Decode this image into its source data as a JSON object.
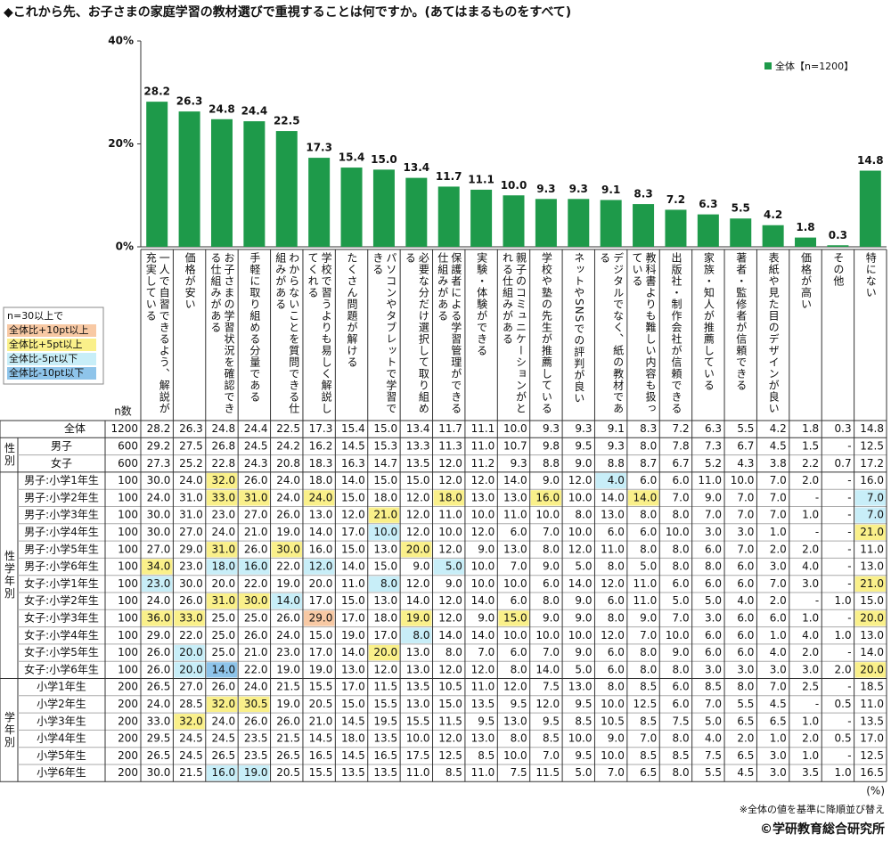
{
  "title": "◆これから先、お子さまの家庭学習の教材選びで重視することは何ですか。(あてはまるものをすべて)",
  "chart_data": {
    "type": "bar",
    "legend": "top-right",
    "grid": false,
    "categories": [
      "一人で自習できるよう、解説が充実している",
      "価格が安い",
      "お子さまの学習状況を確認できる仕組みがある",
      "手軽に取り組める分量である",
      "わからないことを質問できる仕組みがある",
      "学校で習うよりも易しく解説してくれる",
      "たくさん問題が解ける",
      "パソコンやタブレットで学習できる",
      "必要な分だけ選択して取り組める",
      "保護者による学習管理ができる仕組みがある",
      "実験・体験ができる",
      "親子のコミュニケーションがとれる仕組みがある",
      "学校や塾の先生が推薦している",
      "ネットやSNSでの評判が良い",
      "デジタルでなく、紙の教材である",
      "教科書よりも難しい内容も扱っている",
      "出版社・制作会社が信頼できる",
      "家族・知人が推薦している",
      "著者・監修者が信頼できる",
      "表紙や見た目のデザインが良い",
      "価格が高い",
      "その他",
      "特にない"
    ],
    "series": [
      {
        "name": "全体【n=1200】",
        "color": "#1e9a4a",
        "values": [
          28.2,
          26.3,
          24.8,
          24.4,
          22.5,
          17.3,
          15.4,
          15.0,
          13.4,
          11.7,
          11.1,
          10.0,
          9.3,
          9.3,
          9.1,
          8.3,
          7.2,
          6.3,
          5.5,
          4.2,
          1.8,
          0.3,
          14.8
        ],
        "value_labels": [
          "28.2",
          "26.3",
          "24.8",
          "24.4",
          "22.5",
          "17.3",
          "15.4",
          "15.0",
          "13.4",
          "11.7",
          "11.1",
          "10.0",
          "9.3",
          "9.3",
          "9.1",
          "8.3",
          "7.2",
          "6.3",
          "5.5",
          "4.2",
          "1.8",
          "0.3",
          "14.8"
        ]
      }
    ],
    "ylim": [
      0,
      40
    ],
    "yticks": [
      {
        "value": 0,
        "label": "0%"
      },
      {
        "value": 20,
        "label": "20%"
      },
      {
        "value": 40,
        "label": "40%"
      }
    ]
  },
  "table": {
    "n_header": "n数",
    "legend_title": "n=30以上で",
    "min_n": 30,
    "highlight": [
      {
        "label": "全体比+10pt以上",
        "color": "#f8c9a4",
        "min": 10
      },
      {
        "label": "全体比+5pt以上",
        "color": "#faf08a",
        "min": 5
      },
      {
        "label": "全体比-5pt以下",
        "color": "#c8eef8",
        "max": -5
      },
      {
        "label": "全体比-10pt以下",
        "color": "#8ec4ea",
        "max": -10
      }
    ],
    "sections": [
      {
        "rows": [
          {
            "label": "全体",
            "n": "1200",
            "values": [
              "28.2",
              "26.3",
              "24.8",
              "24.4",
              "22.5",
              "17.3",
              "15.4",
              "15.0",
              "13.4",
              "11.7",
              "11.1",
              "10.0",
              "9.3",
              "9.3",
              "9.1",
              "8.3",
              "7.2",
              "6.3",
              "5.5",
              "4.2",
              "1.8",
              "0.3",
              "14.8"
            ]
          }
        ]
      },
      {
        "group": "性別",
        "rows": [
          {
            "label": "男子",
            "n": "600",
            "values": [
              "29.2",
              "27.5",
              "26.8",
              "24.5",
              "24.2",
              "16.2",
              "14.5",
              "15.3",
              "13.3",
              "11.3",
              "11.0",
              "10.7",
              "9.8",
              "9.5",
              "9.3",
              "8.0",
              "7.8",
              "7.3",
              "6.7",
              "4.5",
              "1.5",
              "-",
              "12.5"
            ]
          },
          {
            "label": "女子",
            "n": "600",
            "values": [
              "27.3",
              "25.2",
              "22.8",
              "24.3",
              "20.8",
              "18.3",
              "16.3",
              "14.7",
              "13.5",
              "12.0",
              "11.2",
              "9.3",
              "8.8",
              "9.0",
              "8.8",
              "8.7",
              "6.7",
              "5.2",
              "4.3",
              "3.8",
              "2.2",
              "0.7",
              "17.2"
            ]
          }
        ]
      },
      {
        "group": "性学年別",
        "rows": [
          {
            "label": "男子:小学1年生",
            "n": "100",
            "values": [
              "30.0",
              "24.0",
              "32.0",
              "26.0",
              "24.0",
              "18.0",
              "14.0",
              "15.0",
              "15.0",
              "12.0",
              "12.0",
              "14.0",
              "9.0",
              "12.0",
              "4.0",
              "6.0",
              "6.0",
              "11.0",
              "10.0",
              "7.0",
              "2.0",
              "-",
              "16.0"
            ]
          },
          {
            "label": "男子:小学2年生",
            "n": "100",
            "values": [
              "24.0",
              "31.0",
              "33.0",
              "31.0",
              "24.0",
              "24.0",
              "15.0",
              "18.0",
              "12.0",
              "18.0",
              "13.0",
              "13.0",
              "16.0",
              "10.0",
              "14.0",
              "14.0",
              "7.0",
              "9.0",
              "7.0",
              "7.0",
              "-",
              "-",
              "7.0"
            ]
          },
          {
            "label": "男子:小学3年生",
            "n": "100",
            "values": [
              "30.0",
              "31.0",
              "23.0",
              "27.0",
              "26.0",
              "13.0",
              "12.0",
              "21.0",
              "12.0",
              "11.0",
              "10.0",
              "11.0",
              "10.0",
              "8.0",
              "13.0",
              "8.0",
              "8.0",
              "7.0",
              "7.0",
              "7.0",
              "1.0",
              "-",
              "7.0"
            ]
          },
          {
            "label": "男子:小学4年生",
            "n": "100",
            "values": [
              "30.0",
              "27.0",
              "24.0",
              "21.0",
              "19.0",
              "14.0",
              "17.0",
              "10.0",
              "12.0",
              "10.0",
              "12.0",
              "6.0",
              "7.0",
              "10.0",
              "6.0",
              "6.0",
              "10.0",
              "3.0",
              "3.0",
              "1.0",
              "-",
              "-",
              "21.0"
            ]
          },
          {
            "label": "男子:小学5年生",
            "n": "100",
            "values": [
              "27.0",
              "29.0",
              "31.0",
              "26.0",
              "30.0",
              "16.0",
              "15.0",
              "13.0",
              "20.0",
              "12.0",
              "9.0",
              "13.0",
              "8.0",
              "12.0",
              "11.0",
              "8.0",
              "8.0",
              "6.0",
              "7.0",
              "2.0",
              "2.0",
              "-",
              "11.0"
            ]
          },
          {
            "label": "男子:小学6年生",
            "n": "100",
            "values": [
              "34.0",
              "23.0",
              "18.0",
              "16.0",
              "22.0",
              "12.0",
              "14.0",
              "15.0",
              "9.0",
              "5.0",
              "10.0",
              "7.0",
              "9.0",
              "5.0",
              "8.0",
              "5.0",
              "8.0",
              "8.0",
              "6.0",
              "3.0",
              "4.0",
              "-",
              "13.0"
            ]
          },
          {
            "label": "女子:小学1年生",
            "n": "100",
            "values": [
              "23.0",
              "30.0",
              "20.0",
              "22.0",
              "19.0",
              "20.0",
              "11.0",
              "8.0",
              "12.0",
              "9.0",
              "10.0",
              "10.0",
              "6.0",
              "14.0",
              "12.0",
              "11.0",
              "6.0",
              "6.0",
              "6.0",
              "7.0",
              "3.0",
              "-",
              "21.0"
            ]
          },
          {
            "label": "女子:小学2年生",
            "n": "100",
            "values": [
              "24.0",
              "26.0",
              "31.0",
              "30.0",
              "14.0",
              "17.0",
              "15.0",
              "13.0",
              "14.0",
              "12.0",
              "14.0",
              "6.0",
              "8.0",
              "9.0",
              "6.0",
              "11.0",
              "5.0",
              "5.0",
              "4.0",
              "2.0",
              "-",
              "1.0",
              "15.0"
            ]
          },
          {
            "label": "女子:小学3年生",
            "n": "100",
            "values": [
              "36.0",
              "33.0",
              "25.0",
              "25.0",
              "26.0",
              "29.0",
              "17.0",
              "18.0",
              "19.0",
              "12.0",
              "9.0",
              "15.0",
              "9.0",
              "9.0",
              "8.0",
              "9.0",
              "7.0",
              "3.0",
              "6.0",
              "6.0",
              "1.0",
              "-",
              "20.0"
            ]
          },
          {
            "label": "女子:小学4年生",
            "n": "100",
            "values": [
              "29.0",
              "22.0",
              "25.0",
              "26.0",
              "24.0",
              "15.0",
              "19.0",
              "17.0",
              "8.0",
              "14.0",
              "14.0",
              "10.0",
              "10.0",
              "10.0",
              "12.0",
              "7.0",
              "10.0",
              "6.0",
              "6.0",
              "1.0",
              "4.0",
              "1.0",
              "13.0"
            ]
          },
          {
            "label": "女子:小学5年生",
            "n": "100",
            "values": [
              "26.0",
              "20.0",
              "25.0",
              "21.0",
              "23.0",
              "17.0",
              "14.0",
              "20.0",
              "13.0",
              "8.0",
              "7.0",
              "6.0",
              "7.0",
              "9.0",
              "6.0",
              "8.0",
              "9.0",
              "6.0",
              "6.0",
              "4.0",
              "2.0",
              "-",
              "14.0"
            ]
          },
          {
            "label": "女子:小学6年生",
            "n": "100",
            "values": [
              "26.0",
              "20.0",
              "14.0",
              "22.0",
              "19.0",
              "19.0",
              "13.0",
              "12.0",
              "13.0",
              "12.0",
              "12.0",
              "8.0",
              "14.0",
              "5.0",
              "6.0",
              "8.0",
              "8.0",
              "3.0",
              "3.0",
              "3.0",
              "3.0",
              "2.0",
              "20.0"
            ]
          }
        ]
      },
      {
        "group": "学年別",
        "rows": [
          {
            "label": "小学1年生",
            "n": "200",
            "values": [
              "26.5",
              "27.0",
              "26.0",
              "24.0",
              "21.5",
              "15.5",
              "17.0",
              "11.5",
              "13.5",
              "10.5",
              "11.0",
              "12.0",
              "7.5",
              "13.0",
              "8.0",
              "8.5",
              "6.0",
              "8.5",
              "8.0",
              "7.0",
              "2.5",
              "-",
              "18.5"
            ]
          },
          {
            "label": "小学2年生",
            "n": "200",
            "values": [
              "24.0",
              "28.5",
              "32.0",
              "30.5",
              "19.0",
              "20.5",
              "15.0",
              "15.5",
              "13.0",
              "15.0",
              "13.5",
              "9.5",
              "12.0",
              "9.5",
              "10.0",
              "12.5",
              "6.0",
              "7.0",
              "5.5",
              "4.5",
              "-",
              "0.5",
              "11.0"
            ]
          },
          {
            "label": "小学3年生",
            "n": "200",
            "values": [
              "33.0",
              "32.0",
              "24.0",
              "26.0",
              "26.0",
              "21.0",
              "14.5",
              "19.5",
              "15.5",
              "11.5",
              "9.5",
              "13.0",
              "9.5",
              "8.5",
              "10.5",
              "8.5",
              "7.5",
              "5.0",
              "6.5",
              "6.5",
              "1.0",
              "-",
              "13.5"
            ]
          },
          {
            "label": "小学4年生",
            "n": "200",
            "values": [
              "29.5",
              "24.5",
              "24.5",
              "23.5",
              "21.5",
              "14.5",
              "18.0",
              "13.5",
              "10.0",
              "12.0",
              "13.0",
              "8.0",
              "8.5",
              "10.0",
              "9.0",
              "7.0",
              "8.0",
              "4.0",
              "2.0",
              "1.0",
              "2.0",
              "0.5",
              "17.0"
            ]
          },
          {
            "label": "小学5年生",
            "n": "200",
            "values": [
              "26.5",
              "24.5",
              "26.5",
              "23.5",
              "26.5",
              "16.5",
              "14.5",
              "16.5",
              "17.5",
              "12.5",
              "8.5",
              "10.0",
              "7.0",
              "9.5",
              "10.0",
              "8.5",
              "8.5",
              "7.5",
              "6.5",
              "3.0",
              "1.0",
              "-",
              "12.5"
            ]
          },
          {
            "label": "小学6年生",
            "n": "200",
            "values": [
              "30.0",
              "21.5",
              "16.0",
              "19.0",
              "20.5",
              "15.5",
              "13.5",
              "13.5",
              "11.0",
              "8.5",
              "11.0",
              "7.5",
              "11.5",
              "5.0",
              "7.0",
              "6.5",
              "8.0",
              "5.5",
              "4.5",
              "3.0",
              "3.5",
              "1.0",
              "16.5"
            ]
          }
        ]
      }
    ]
  },
  "unit_note": "(%)",
  "sort_note": "※全体の値を基準に降順並び替え",
  "copyright": "©学研教育総合研究所"
}
